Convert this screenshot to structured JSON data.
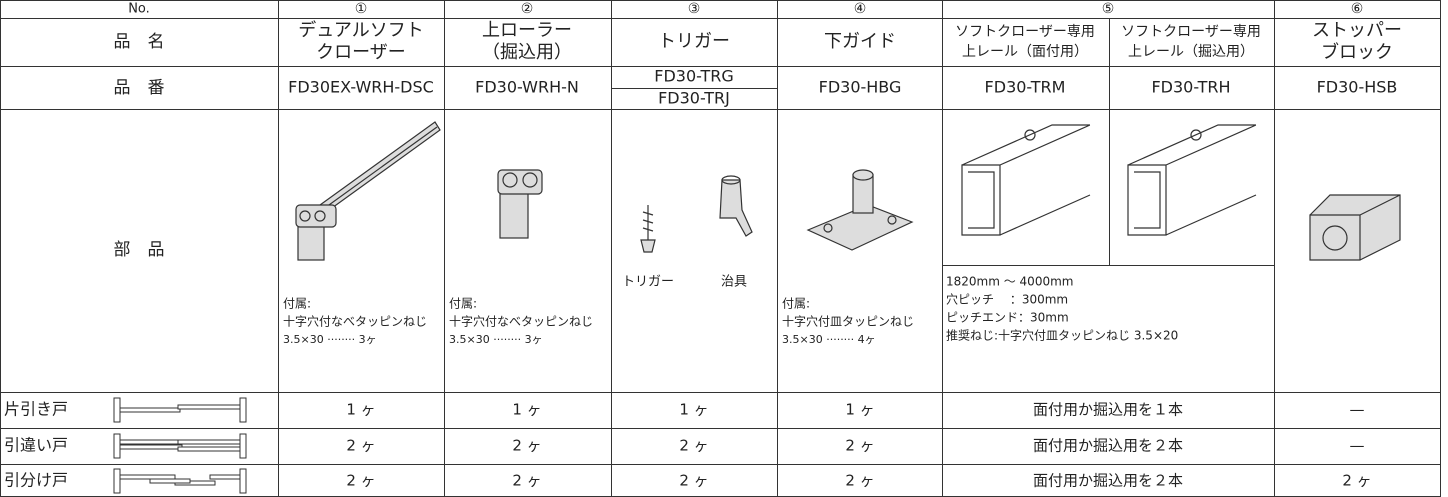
{
  "header": {
    "label": "No.",
    "numbers": [
      "①",
      "②",
      "③",
      "④",
      "⑤",
      "⑥"
    ]
  },
  "name_row": {
    "label": "品　名",
    "items": [
      [
        "デュアルソフト",
        "クローザー"
      ],
      [
        "上ローラー",
        "（掘込用）"
      ],
      [
        "トリガー"
      ],
      [
        "下ガイド"
      ],
      [
        "ソフトクローザー専用",
        "上レール（面付用）"
      ],
      [
        "ソフトクローザー専用",
        "上レール（掘込用）"
      ],
      [
        "ストッパー",
        "ブロック"
      ]
    ]
  },
  "number_row": {
    "label": "品　番",
    "items": [
      "FD30EX-WRH-DSC",
      "FD30-WRH-N",
      "FD30-TRG",
      "FD30-TRJ",
      "FD30-HBG",
      "FD30-TRM",
      "FD30-TRH",
      "FD30-HSB"
    ]
  },
  "parts_row": {
    "label": "部　品",
    "trigger_captions": [
      "トリガー",
      "治具"
    ],
    "closer_note": [
      "付属:",
      "十字穴付なべタッピンねじ",
      "3.5×30 ········ 3ヶ"
    ],
    "roller_note": [
      "付属:",
      "十字穴付なべタッピンねじ",
      "3.5×30 ········ 3ヶ"
    ],
    "guide_note": [
      "付属:",
      "十字穴付皿タッピンねじ",
      "3.5×30 ········ 4ヶ"
    ],
    "rail_note": [
      "1820mm ～ 4000mm",
      "穴ピッチ　 ：300mm",
      "ピッチエンド：30mm",
      "推奨ねじ:十字穴付皿タッピンねじ 3.5×20"
    ]
  },
  "door_rows": [
    {
      "label": "片引き戸",
      "cells": [
        "1 ヶ",
        "1 ヶ",
        "1 ヶ",
        "1 ヶ",
        "面付用か掘込用を１本",
        "—"
      ]
    },
    {
      "label": "引違い戸",
      "cells": [
        "2 ヶ",
        "2 ヶ",
        "2 ヶ",
        "2 ヶ",
        "面付用か掘込用を２本",
        "—"
      ]
    },
    {
      "label": "引分け戸",
      "cells": [
        "2 ヶ",
        "2 ヶ",
        "2 ヶ",
        "2 ヶ",
        "面付用か掘込用を２本",
        "2 ヶ"
      ]
    }
  ]
}
